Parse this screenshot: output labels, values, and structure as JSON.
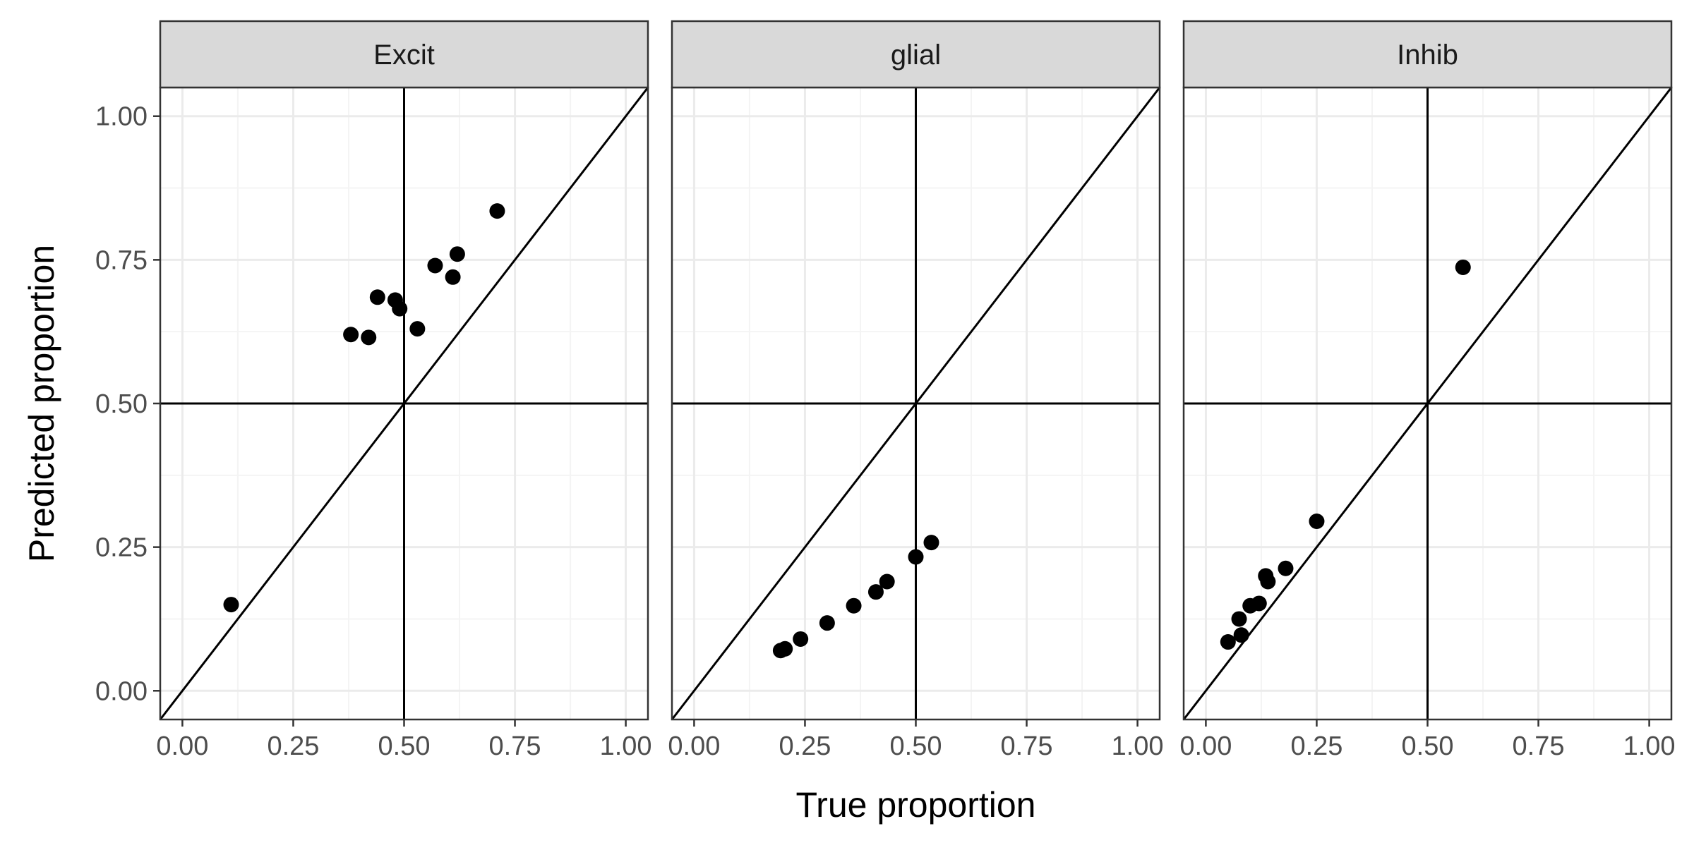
{
  "chart_data": {
    "type": "scatter",
    "facet_layout": "1 row x 3 columns, shared axes",
    "xlabel": "True proportion",
    "ylabel": "Predicted proportion",
    "xlim": [
      -0.05,
      1.05
    ],
    "ylim": [
      -0.05,
      1.05
    ],
    "x_ticks": [
      0,
      0.25,
      0.5,
      0.75,
      1.0
    ],
    "x_tick_labels": [
      "0.00",
      "0.25",
      "0.50",
      "0.75",
      "1.00"
    ],
    "y_ticks": [
      0,
      0.25,
      0.5,
      0.75,
      1.0
    ],
    "y_tick_labels": [
      "0.00",
      "0.25",
      "0.50",
      "0.75",
      "1.00"
    ],
    "grid": true,
    "reference_lines": {
      "vline_x": 0.5,
      "hline_y": 0.5,
      "identity": true
    },
    "colors": {
      "point": "#000000",
      "strip_bg": "#d9d9d9",
      "grid_major": "#ebebeb",
      "grid_minor": "#f4f4f4",
      "panel_border": "#333333"
    },
    "facets": [
      {
        "label": "Excit",
        "points": [
          {
            "x": 0.11,
            "y": 0.15
          },
          {
            "x": 0.38,
            "y": 0.62
          },
          {
            "x": 0.42,
            "y": 0.615
          },
          {
            "x": 0.44,
            "y": 0.685
          },
          {
            "x": 0.48,
            "y": 0.68
          },
          {
            "x": 0.49,
            "y": 0.665
          },
          {
            "x": 0.53,
            "y": 0.63
          },
          {
            "x": 0.57,
            "y": 0.74
          },
          {
            "x": 0.61,
            "y": 0.72
          },
          {
            "x": 0.62,
            "y": 0.76
          },
          {
            "x": 0.71,
            "y": 0.835
          }
        ]
      },
      {
        "label": "glial",
        "points": [
          {
            "x": 0.195,
            "y": 0.07
          },
          {
            "x": 0.205,
            "y": 0.073
          },
          {
            "x": 0.24,
            "y": 0.09
          },
          {
            "x": 0.3,
            "y": 0.118
          },
          {
            "x": 0.36,
            "y": 0.148
          },
          {
            "x": 0.41,
            "y": 0.172
          },
          {
            "x": 0.435,
            "y": 0.19
          },
          {
            "x": 0.5,
            "y": 0.233
          },
          {
            "x": 0.535,
            "y": 0.258
          }
        ]
      },
      {
        "label": "Inhib",
        "points": [
          {
            "x": 0.05,
            "y": 0.085
          },
          {
            "x": 0.075,
            "y": 0.125
          },
          {
            "x": 0.08,
            "y": 0.097
          },
          {
            "x": 0.1,
            "y": 0.148
          },
          {
            "x": 0.12,
            "y": 0.152
          },
          {
            "x": 0.135,
            "y": 0.2
          },
          {
            "x": 0.14,
            "y": 0.19
          },
          {
            "x": 0.18,
            "y": 0.213
          },
          {
            "x": 0.25,
            "y": 0.295
          },
          {
            "x": 0.58,
            "y": 0.737
          }
        ]
      }
    ]
  }
}
